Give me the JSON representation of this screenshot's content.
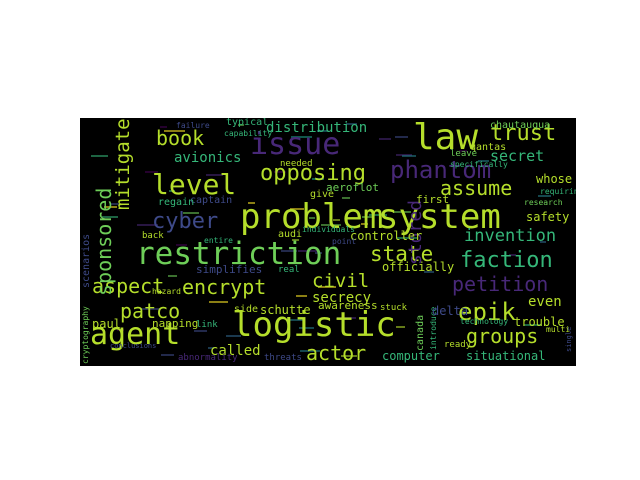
{
  "palette": [
    "#440154",
    "#482878",
    "#3e4a89",
    "#31688e",
    "#26828e",
    "#1f9e89",
    "#35b779",
    "#6ece58",
    "#b5de2b",
    "#fde725"
  ],
  "words": [
    {
      "text": "problem",
      "color": "#b5de2b"
    },
    {
      "text": "system",
      "color": "#b5de2b"
    },
    {
      "text": "restriction",
      "color": "#6ece58"
    },
    {
      "text": "logistic",
      "color": "#b5de2b"
    },
    {
      "text": "agent",
      "color": "#b5de2b"
    },
    {
      "text": "issue",
      "color": "#482878"
    },
    {
      "text": "law",
      "color": "#b5de2b"
    },
    {
      "text": "level",
      "color": "#b5de2b"
    },
    {
      "text": "trust",
      "color": "#b5de2b"
    },
    {
      "text": "book",
      "color": "#b5de2b"
    },
    {
      "text": "opposing",
      "color": "#b5de2b"
    },
    {
      "text": "phantom",
      "color": "#482878"
    },
    {
      "text": "assume",
      "color": "#b5de2b"
    },
    {
      "text": "cyber",
      "color": "#3e4a89"
    },
    {
      "text": "faction",
      "color": "#35b779"
    },
    {
      "text": "state",
      "color": "#b5de2b"
    },
    {
      "text": "invention",
      "color": "#35b779"
    },
    {
      "text": "aspect",
      "color": "#b5de2b"
    },
    {
      "text": "encrypt",
      "color": "#b5de2b"
    },
    {
      "text": "civil",
      "color": "#b5de2b"
    },
    {
      "text": "petition",
      "color": "#482878"
    },
    {
      "text": "patco",
      "color": "#b5de2b"
    },
    {
      "text": "epik",
      "color": "#b5de2b"
    },
    {
      "text": "groups",
      "color": "#b5de2b"
    },
    {
      "text": "actor",
      "color": "#b5de2b"
    },
    {
      "text": "secrecy",
      "color": "#b5de2b"
    },
    {
      "text": "even",
      "color": "#b5de2b"
    },
    {
      "text": "distribution",
      "color": "#35b779"
    },
    {
      "text": "avionics",
      "color": "#35b779"
    },
    {
      "text": "secret",
      "color": "#35b779"
    },
    {
      "text": "sponsored",
      "color": "#6ece58"
    },
    {
      "text": "mitigate",
      "color": "#b5de2b"
    },
    {
      "text": "stored",
      "color": "#482878"
    },
    {
      "text": "controller",
      "color": "#b5de2b"
    },
    {
      "text": "simplifies",
      "color": "#3e4a89"
    },
    {
      "text": "called",
      "color": "#b5de2b"
    },
    {
      "text": "computer",
      "color": "#35b779"
    },
    {
      "text": "situational",
      "color": "#35b779"
    },
    {
      "text": "trouble",
      "color": "#b5de2b"
    },
    {
      "text": "safety",
      "color": "#b5de2b"
    },
    {
      "text": "officially",
      "color": "#b5de2b"
    },
    {
      "text": "aeroflot",
      "color": "#6ece58"
    },
    {
      "text": "awareness",
      "color": "#b5de2b"
    },
    {
      "text": "schutte",
      "color": "#b5de2b"
    },
    {
      "text": "side",
      "color": "#b5de2b"
    },
    {
      "text": "napping",
      "color": "#b5de2b"
    },
    {
      "text": "paul",
      "color": "#b5de2b"
    },
    {
      "text": "delta",
      "color": "#3e4a89"
    },
    {
      "text": "canada",
      "color": "#6ece58"
    },
    {
      "text": "qantas",
      "color": "#b5de2b"
    },
    {
      "text": "chautauqua",
      "color": "#6ece58"
    },
    {
      "text": "whose",
      "color": "#b5de2b"
    },
    {
      "text": "typical",
      "color": "#35b779"
    },
    {
      "text": "captain",
      "color": "#3e4a89"
    },
    {
      "text": "regain",
      "color": "#35b779"
    },
    {
      "text": "audi",
      "color": "#b5de2b"
    },
    {
      "text": "give",
      "color": "#b5de2b"
    },
    {
      "text": "first",
      "color": "#b5de2b"
    },
    {
      "text": "leave",
      "color": "#6ece58"
    },
    {
      "text": "needed",
      "color": "#b5de2b"
    },
    {
      "text": "scenarios",
      "color": "#3e4a89"
    },
    {
      "text": "cryptography",
      "color": "#6ece58"
    },
    {
      "text": "abnormality",
      "color": "#482878"
    },
    {
      "text": "threats",
      "color": "#3e4a89"
    },
    {
      "text": "link",
      "color": "#35b779"
    },
    {
      "text": "ready",
      "color": "#b5de2b"
    },
    {
      "text": "real",
      "color": "#35b779"
    },
    {
      "text": "stuck",
      "color": "#b5de2b"
    },
    {
      "text": "introduce",
      "color": "#35b779"
    },
    {
      "text": "back",
      "color": "#b5de2b"
    },
    {
      "text": "entire",
      "color": "#35b779"
    },
    {
      "text": "individuals",
      "color": "#35b779"
    },
    {
      "text": "point",
      "color": "#3e4a89"
    },
    {
      "text": "research",
      "color": "#6ece58"
    },
    {
      "text": "requiring",
      "color": "#35b779"
    },
    {
      "text": "specifically",
      "color": "#35b779"
    },
    {
      "text": "failure",
      "color": "#3e4a89"
    },
    {
      "text": "capability",
      "color": "#35b779"
    },
    {
      "text": "hazard",
      "color": "#b5de2b"
    },
    {
      "text": "technology",
      "color": "#35b779"
    },
    {
      "text": "conclusions",
      "color": "#3e4a89"
    },
    {
      "text": "multi",
      "color": "#b5de2b"
    },
    {
      "text": "single",
      "color": "#3e4a89"
    }
  ]
}
